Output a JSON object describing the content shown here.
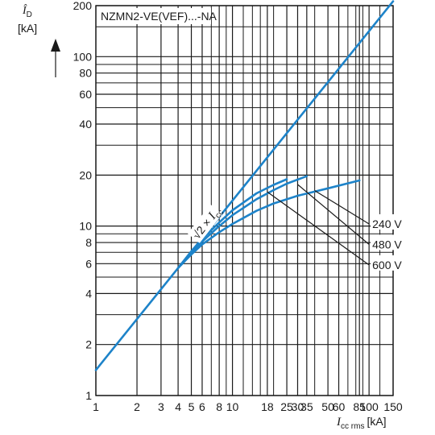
{
  "chart_data": {
    "type": "line",
    "title": "NZMN2-VE(VEF)...-NA",
    "xlabel": {
      "symbol": "I",
      "sub": "cc rms",
      "unit": "[kA]"
    },
    "ylabel": {
      "symbol": "Î",
      "sub": "D",
      "unit": "[kA]"
    },
    "xscale": "log",
    "yscale": "log",
    "xlim": [
      1,
      150
    ],
    "ylim": [
      1,
      200
    ],
    "grid": true,
    "x_ticks": [
      1,
      2,
      3,
      4,
      5,
      6,
      8,
      10,
      18,
      25,
      30,
      35,
      50,
      60,
      85,
      100,
      150
    ],
    "x_tick_labels": [
      "1",
      "2",
      "3",
      "4",
      "5",
      "6",
      "8",
      "10",
      "18",
      "25",
      "30",
      "35",
      "50",
      "60",
      "85",
      "100",
      "150"
    ],
    "y_ticks": [
      1,
      2,
      4,
      6,
      8,
      10,
      20,
      40,
      60,
      80,
      100,
      200
    ],
    "y_tick_labels": [
      "1",
      "2",
      "4",
      "6",
      "8",
      "10",
      "20",
      "40",
      "60",
      "80",
      "100",
      "200"
    ],
    "x_minor_grid": [
      7,
      9,
      12,
      14,
      16,
      20,
      40,
      70,
      80,
      90,
      120
    ],
    "y_minor_grid": [
      3,
      5,
      7,
      9,
      30,
      50,
      70,
      90,
      150
    ],
    "series": [
      {
        "name": "√2 × Icc",
        "label": {
          "prefix": "√2 ×",
          "symbol": "I",
          "sub": "cc"
        },
        "color": "#1d83c9",
        "points": [
          [
            1,
            1.414
          ],
          [
            150,
            212.1
          ]
        ]
      },
      {
        "name": "240 V",
        "color": "#1d83c9",
        "points": [
          [
            4,
            5.66
          ],
          [
            5,
            6.8
          ],
          [
            6,
            7.8
          ],
          [
            8,
            9.2
          ],
          [
            10,
            10.3
          ],
          [
            15,
            12.3
          ],
          [
            20,
            13.6
          ],
          [
            30,
            15.1
          ],
          [
            50,
            16.7
          ],
          [
            85,
            18.6
          ]
        ]
      },
      {
        "name": "480 V",
        "color": "#1d83c9",
        "points": [
          [
            4,
            5.66
          ],
          [
            5,
            7.0
          ],
          [
            6,
            8.1
          ],
          [
            8,
            10.0
          ],
          [
            10,
            11.6
          ],
          [
            15,
            14.4
          ],
          [
            20,
            16.3
          ],
          [
            25,
            17.8
          ],
          [
            35,
            19.7
          ]
        ]
      },
      {
        "name": "600 V",
        "color": "#1d83c9",
        "points": [
          [
            4,
            5.66
          ],
          [
            5,
            7.1
          ],
          [
            6,
            8.4
          ],
          [
            8,
            10.5
          ],
          [
            10,
            12.4
          ],
          [
            15,
            15.6
          ],
          [
            20,
            17.5
          ],
          [
            25,
            18.9
          ]
        ]
      }
    ],
    "annotations": [
      {
        "text": "240 V",
        "from": [
          40,
          16.2
        ],
        "to": [
          100,
          10.3
        ]
      },
      {
        "text": "480 V",
        "from": [
          30,
          17.6
        ],
        "to": [
          100,
          7.8
        ]
      },
      {
        "text": "600 V",
        "from": [
          18,
          15.9
        ],
        "to": [
          100,
          5.9
        ]
      }
    ],
    "colors": {
      "curve": "#1d83c9",
      "grid": "#1a1a1a",
      "text": "#1a1a1a"
    }
  }
}
